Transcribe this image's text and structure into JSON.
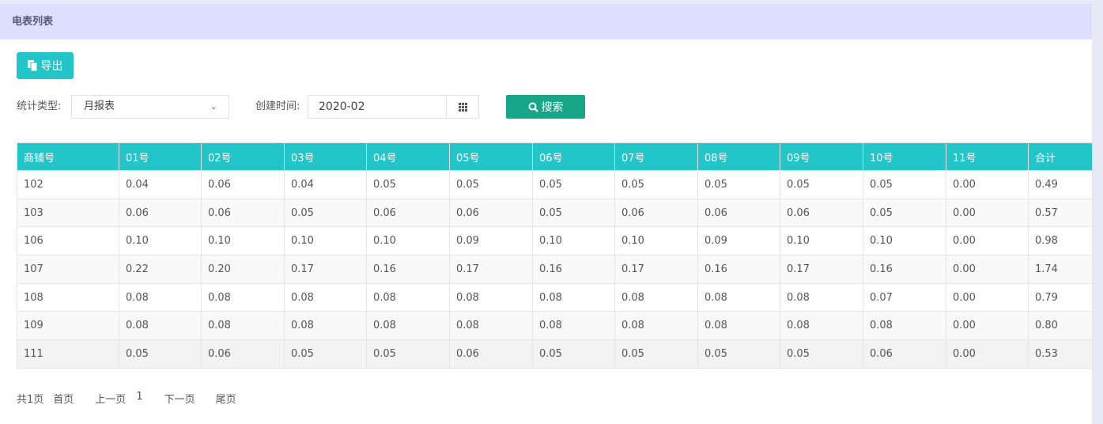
{
  "panel": {
    "title": "电表列表"
  },
  "toolbar": {
    "export_label": "导出"
  },
  "filters": {
    "type_label": "统计类型:",
    "type_value": "月报表",
    "date_label": "创建时间:",
    "date_value": "2020-02",
    "search_label": "搜索"
  },
  "table": {
    "headers": [
      "商铺号",
      "01号",
      "02号",
      "03号",
      "04号",
      "05号",
      "06号",
      "07号",
      "08号",
      "09号",
      "10号",
      "11号",
      "合计"
    ],
    "rows": [
      [
        "102",
        "0.04",
        "0.06",
        "0.04",
        "0.05",
        "0.05",
        "0.05",
        "0.05",
        "0.05",
        "0.05",
        "0.05",
        "0.00",
        "0.49"
      ],
      [
        "103",
        "0.06",
        "0.06",
        "0.05",
        "0.06",
        "0.06",
        "0.05",
        "0.06",
        "0.06",
        "0.06",
        "0.05",
        "0.00",
        "0.57"
      ],
      [
        "106",
        "0.10",
        "0.10",
        "0.10",
        "0.10",
        "0.09",
        "0.10",
        "0.10",
        "0.09",
        "0.10",
        "0.10",
        "0.00",
        "0.98"
      ],
      [
        "107",
        "0.22",
        "0.20",
        "0.17",
        "0.16",
        "0.17",
        "0.16",
        "0.17",
        "0.16",
        "0.17",
        "0.16",
        "0.00",
        "1.74"
      ],
      [
        "108",
        "0.08",
        "0.08",
        "0.08",
        "0.08",
        "0.08",
        "0.08",
        "0.08",
        "0.08",
        "0.08",
        "0.07",
        "0.00",
        "0.79"
      ],
      [
        "109",
        "0.08",
        "0.08",
        "0.08",
        "0.08",
        "0.08",
        "0.08",
        "0.08",
        "0.08",
        "0.08",
        "0.08",
        "0.00",
        "0.80"
      ],
      [
        "111",
        "0.05",
        "0.06",
        "0.05",
        "0.05",
        "0.06",
        "0.05",
        "0.05",
        "0.05",
        "0.05",
        "0.06",
        "0.00",
        "0.53"
      ]
    ]
  },
  "pagination": {
    "total": "共1页",
    "first": "首页",
    "prev": "上一页",
    "current": "1",
    "next": "下一页",
    "last": "尾页"
  },
  "colors": {
    "accent": "#23c6c8",
    "search": "#18a689",
    "header_band": "#dde0fd"
  }
}
